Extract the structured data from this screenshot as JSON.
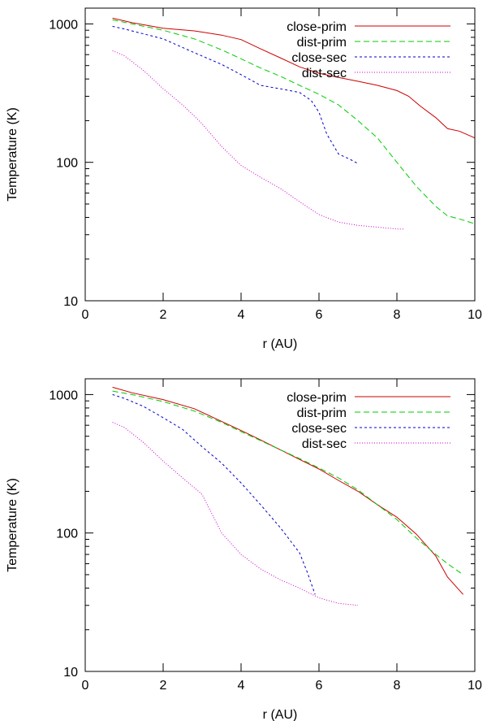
{
  "chart_data": [
    {
      "type": "line",
      "xlabel": "r (AU)",
      "ylabel": "Temperature (K)",
      "xlim": [
        0,
        10
      ],
      "ylim": [
        10,
        1300
      ],
      "yscale": "log",
      "grid": false,
      "legend": "top-right",
      "xticks": [
        0,
        2,
        4,
        6,
        8,
        10
      ],
      "yticks": [
        10,
        100,
        1000
      ],
      "series": [
        {
          "name": "close-prim",
          "color": "#cc0000",
          "dash": "",
          "x": [
            0.7,
            1.2,
            2.0,
            2.8,
            3.5,
            4.0,
            4.5,
            5.0,
            5.5,
            6.0,
            6.5,
            7.0,
            7.5,
            8.0,
            8.3,
            8.6,
            9.0,
            9.3,
            9.6,
            10.0
          ],
          "y": [
            1100,
            1020,
            930,
            890,
            830,
            770,
            660,
            570,
            490,
            440,
            410,
            385,
            360,
            330,
            300,
            255,
            210,
            175,
            168,
            150
          ]
        },
        {
          "name": "dist-prim",
          "color": "#00cc00",
          "dash": "7,4",
          "x": [
            0.7,
            1.2,
            2.0,
            2.8,
            3.5,
            4.0,
            4.5,
            5.0,
            5.5,
            6.0,
            6.5,
            7.0,
            7.5,
            8.0,
            8.5,
            9.0,
            9.3,
            9.6,
            10.0
          ],
          "y": [
            1070,
            1000,
            900,
            780,
            650,
            560,
            480,
            420,
            360,
            310,
            260,
            200,
            150,
            100,
            67,
            48,
            41,
            39,
            36
          ]
        },
        {
          "name": "close-sec",
          "color": "#0000cc",
          "dash": "3,3",
          "x": [
            0.7,
            1.0,
            2.0,
            2.8,
            3.5,
            4.0,
            4.5,
            5.0,
            5.5,
            5.8,
            6.0,
            6.2,
            6.5,
            6.8,
            7.0
          ],
          "y": [
            960,
            920,
            780,
            620,
            510,
            430,
            360,
            340,
            320,
            280,
            230,
            160,
            115,
            105,
            98
          ]
        },
        {
          "name": "dist-sec",
          "color": "#cc00cc",
          "dash": "1,2",
          "x": [
            0.7,
            1.0,
            1.5,
            2.0,
            2.5,
            3.0,
            3.5,
            4.0,
            4.5,
            5.0,
            5.5,
            6.0,
            6.5,
            7.0,
            7.5,
            8.0,
            8.2
          ],
          "y": [
            640,
            590,
            460,
            340,
            260,
            190,
            130,
            95,
            78,
            65,
            52,
            42,
            37,
            35,
            34,
            33,
            33
          ]
        }
      ]
    },
    {
      "type": "line",
      "xlabel": "r (AU)",
      "ylabel": "Temperature (K)",
      "xlim": [
        0,
        10
      ],
      "ylim": [
        10,
        1300
      ],
      "yscale": "log",
      "grid": false,
      "legend": "top-right",
      "xticks": [
        0,
        2,
        4,
        6,
        8,
        10
      ],
      "yticks": [
        10,
        100,
        1000
      ],
      "series": [
        {
          "name": "close-prim",
          "color": "#cc0000",
          "dash": "",
          "x": [
            0.7,
            1.2,
            2.0,
            2.8,
            3.5,
            4.0,
            4.5,
            5.0,
            5.5,
            6.0,
            6.5,
            7.0,
            7.5,
            8.0,
            8.5,
            9.0,
            9.3,
            9.7
          ],
          "y": [
            1130,
            1030,
            920,
            790,
            640,
            550,
            470,
            400,
            340,
            290,
            240,
            200,
            160,
            130,
            98,
            68,
            48,
            36
          ]
        },
        {
          "name": "dist-prim",
          "color": "#00cc00",
          "dash": "7,4",
          "x": [
            0.7,
            1.2,
            2.0,
            2.8,
            3.5,
            4.0,
            4.5,
            5.0,
            5.5,
            6.0,
            6.5,
            7.0,
            7.5,
            8.0,
            8.5,
            9.0,
            9.3,
            9.7
          ],
          "y": [
            1060,
            1000,
            890,
            760,
            630,
            540,
            465,
            400,
            345,
            295,
            250,
            205,
            160,
            125,
            92,
            70,
            60,
            50
          ]
        },
        {
          "name": "close-sec",
          "color": "#0000cc",
          "dash": "3,3",
          "x": [
            0.7,
            1.0,
            1.5,
            2.0,
            2.5,
            3.0,
            3.5,
            4.0,
            4.5,
            5.0,
            5.5,
            5.7,
            5.9
          ],
          "y": [
            1000,
            940,
            820,
            680,
            560,
            420,
            320,
            230,
            160,
            110,
            72,
            52,
            36
          ]
        },
        {
          "name": "dist-sec",
          "color": "#cc00cc",
          "dash": "1,2",
          "x": [
            0.7,
            1.0,
            1.5,
            2.0,
            2.5,
            3.0,
            3.5,
            4.0,
            4.5,
            5.0,
            5.5,
            6.0,
            6.5,
            7.0
          ],
          "y": [
            630,
            580,
            450,
            330,
            250,
            190,
            100,
            70,
            55,
            46,
            40,
            34,
            31,
            30
          ]
        }
      ]
    }
  ]
}
